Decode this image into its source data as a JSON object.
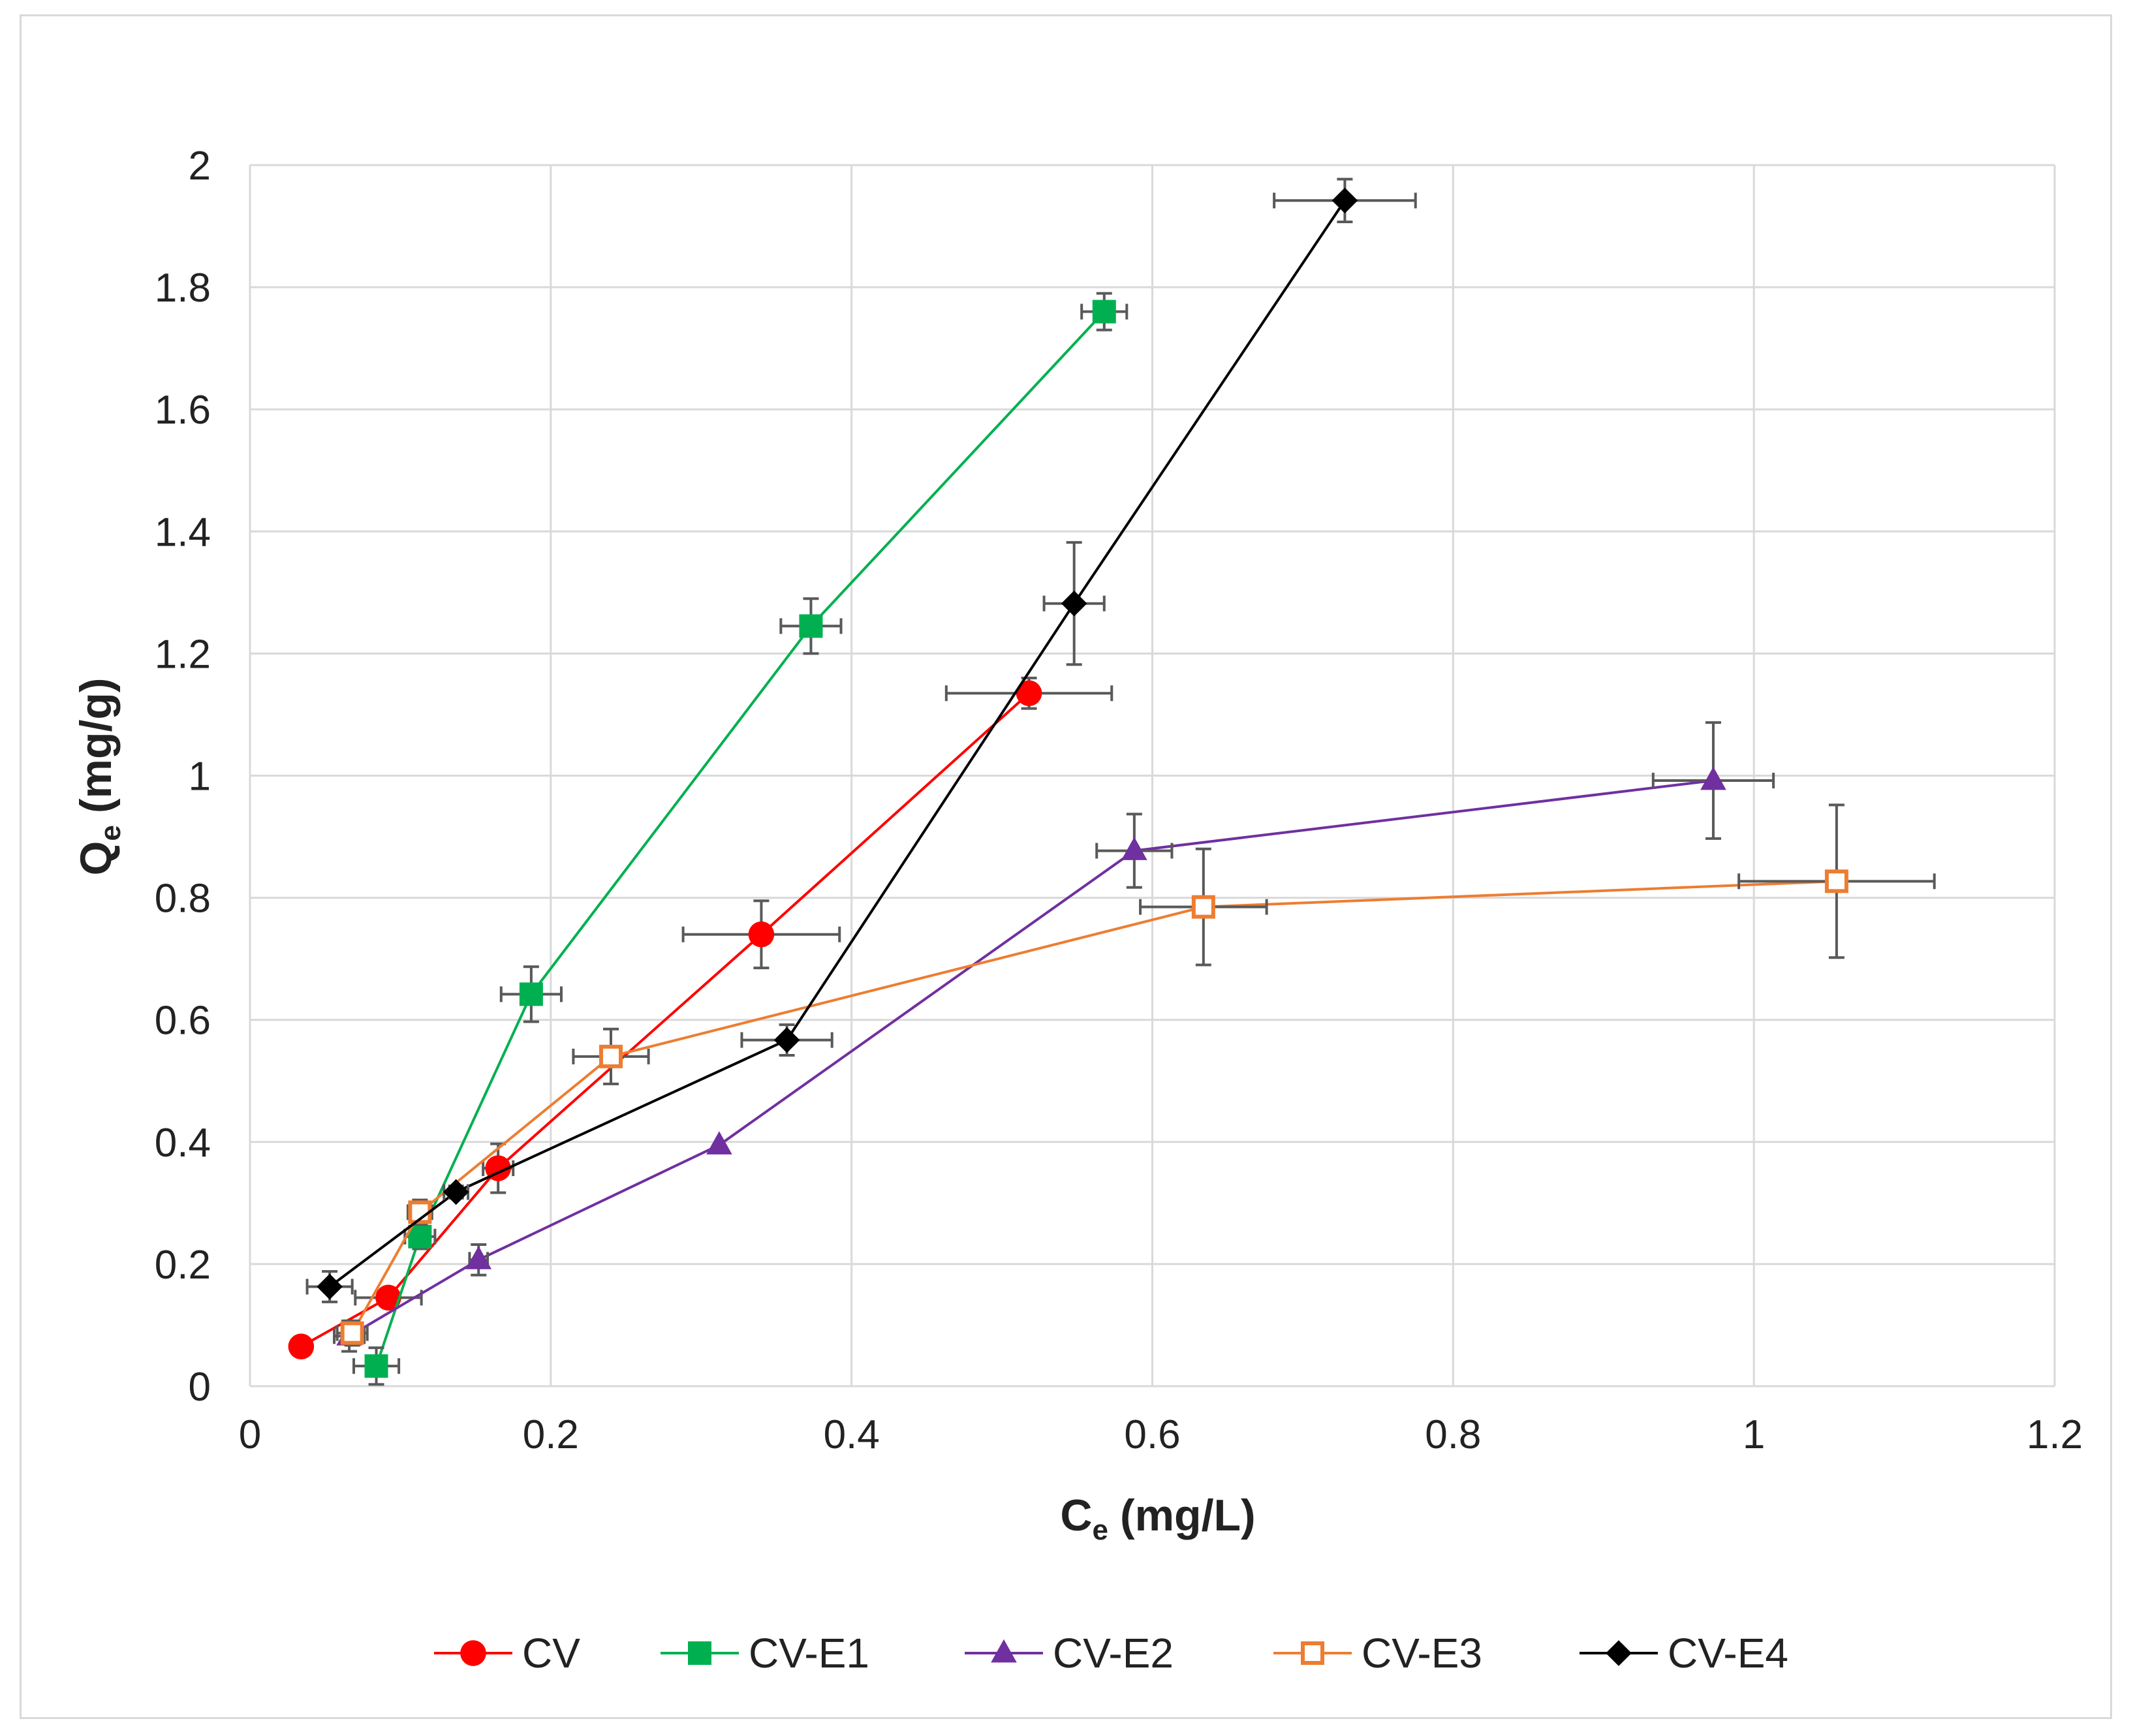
{
  "chart_data": {
    "type": "scatter",
    "title": "",
    "xlabel": "C",
    "xlabel_sub": "e",
    "xlabel_unit": "(mg/L)",
    "ylabel": "Q",
    "ylabel_sub": "e",
    "ylabel_unit": "(mg/g)",
    "xlim": [
      0,
      1.2
    ],
    "ylim": [
      0,
      2
    ],
    "xticks": [
      0,
      0.2,
      0.4,
      0.6,
      0.8,
      1,
      1.2
    ],
    "yticks": [
      0,
      0.2,
      0.4,
      0.6,
      0.8,
      1,
      1.2,
      1.4,
      1.6,
      1.8,
      2
    ],
    "xtick_labels": [
      "0",
      "0.2",
      "0.4",
      "0.6",
      "0.8",
      "1",
      "1.2"
    ],
    "ytick_labels": [
      "0",
      "0.2",
      "0.4",
      "0.6",
      "0.8",
      "1",
      "1.2",
      "1.4",
      "1.6",
      "1.8",
      "2"
    ],
    "grid": true,
    "legend_position": "bottom",
    "series": [
      {
        "name": "CV",
        "color": "#ff0000",
        "marker": "circle",
        "x": [
          0.034,
          0.092,
          0.165,
          0.34,
          0.518
        ],
        "y": [
          0.065,
          0.145,
          0.357,
          0.74,
          1.135
        ],
        "xerr": [
          0,
          0.022,
          0.01,
          0.052,
          0.055
        ],
        "yerr": [
          0,
          0.01,
          0.04,
          0.055,
          0.025
        ]
      },
      {
        "name": "CV-E1",
        "color": "#00b050",
        "marker": "square",
        "x": [
          0.084,
          0.113,
          0.187,
          0.373,
          0.568
        ],
        "y": [
          0.033,
          0.245,
          0.642,
          1.245,
          1.76
        ],
        "xerr": [
          0.015,
          0.01,
          0.02,
          0.02,
          0.015
        ],
        "yerr": [
          0.03,
          0.02,
          0.045,
          0.045,
          0.03
        ]
      },
      {
        "name": "CV-E2",
        "color": "#7030a0",
        "marker": "triangle",
        "x": [
          0.066,
          0.152,
          0.312,
          0.588,
          0.973
        ],
        "y": [
          0.082,
          0.207,
          0.395,
          0.877,
          0.992
        ],
        "xerr": [
          0.01,
          0.006,
          0,
          0.025,
          0.04
        ],
        "yerr": [
          0.025,
          0.025,
          0,
          0.06,
          0.095
        ]
      },
      {
        "name": "CV-E3",
        "color": "#ed7d31",
        "marker": "square-open",
        "x": [
          0.068,
          0.113,
          0.24,
          0.634,
          1.055
        ],
        "y": [
          0.087,
          0.285,
          0.54,
          0.785,
          0.827
        ],
        "xerr": [
          0.01,
          0.008,
          0.025,
          0.042,
          0.065
        ],
        "yerr": [
          0.02,
          0.02,
          0.045,
          0.095,
          0.125
        ]
      },
      {
        "name": "CV-E4",
        "color": "#000000",
        "marker": "diamond",
        "x": [
          0.053,
          0.137,
          0.357,
          0.548,
          0.728
        ],
        "y": [
          0.163,
          0.318,
          0.567,
          1.282,
          1.942
        ],
        "xerr": [
          0.015,
          0.008,
          0.03,
          0.02,
          0.047
        ],
        "yerr": [
          0.025,
          0.01,
          0.025,
          0.1,
          0.035
        ]
      }
    ]
  }
}
